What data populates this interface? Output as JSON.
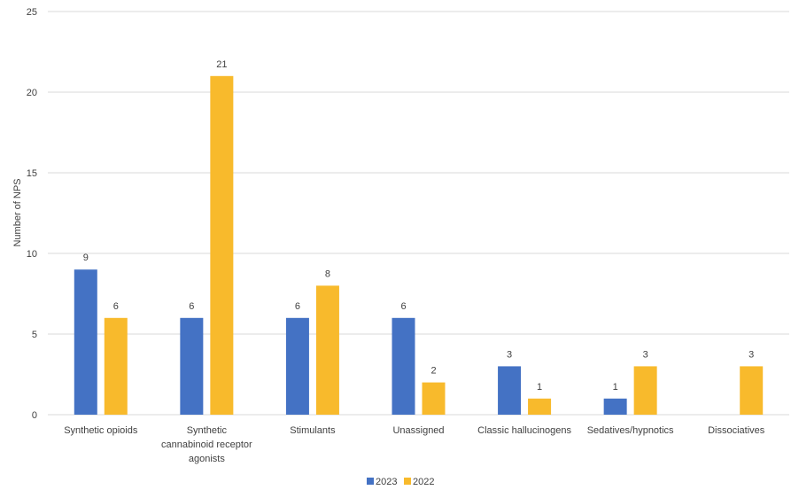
{
  "chart_data": {
    "type": "bar",
    "title": "",
    "xlabel": "",
    "ylabel": "Number of NPS",
    "ylim": [
      0,
      25
    ],
    "yticks": [
      0,
      5,
      10,
      15,
      20,
      25
    ],
    "grid": true,
    "legend_position": "bottom",
    "categories": [
      [
        "Synthetic opioids"
      ],
      [
        "Synthetic",
        "cannabinoid receptor",
        "agonists"
      ],
      [
        "Stimulants"
      ],
      [
        "Unassigned"
      ],
      [
        "Classic hallucinogens"
      ],
      [
        "Sedatives/hypnotics"
      ],
      [
        "Dissociatives"
      ]
    ],
    "series": [
      {
        "name": "2023",
        "color": "#4472C4",
        "values": [
          9,
          6,
          6,
          6,
          3,
          1,
          null
        ]
      },
      {
        "name": "2022",
        "color": "#F8BA2C",
        "values": [
          6,
          21,
          8,
          2,
          1,
          3,
          3
        ]
      }
    ]
  }
}
